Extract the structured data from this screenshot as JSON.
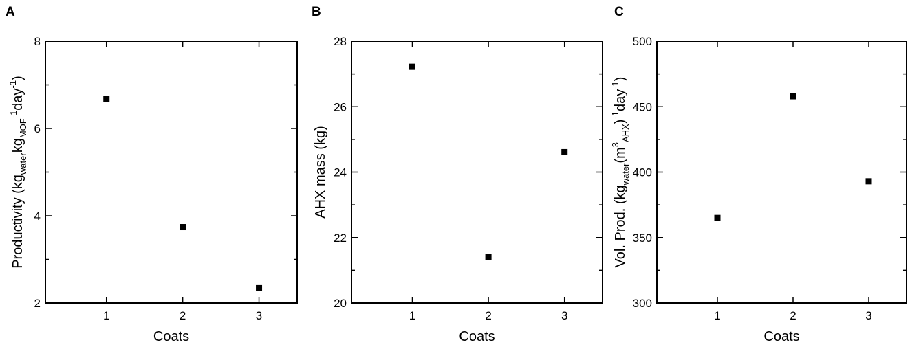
{
  "chart_data": [
    {
      "panel": "A",
      "type": "scatter",
      "xlabel": "Coats",
      "ylabel": {
        "main": "Productivity (kg",
        "sub1": "water",
        "mid1": "kg",
        "sub2": "MOF",
        "sup2": "-1",
        "end": "day",
        "sup3": "-1",
        "close": ")"
      },
      "x": [
        1,
        2,
        3
      ],
      "y": [
        6.67,
        3.74,
        2.34
      ],
      "xlim": [
        0.2,
        3.5
      ],
      "ylim": [
        2,
        8
      ],
      "xticks": [
        "1",
        "2",
        "3"
      ],
      "yticks": [
        "2",
        "4",
        "6",
        "8"
      ],
      "grid": false
    },
    {
      "panel": "B",
      "type": "scatter",
      "xlabel": "Coats",
      "ylabel": {
        "main": "AHX mass (kg)"
      },
      "x": [
        1,
        2,
        3
      ],
      "y": [
        27.22,
        21.41,
        24.61
      ],
      "xlim": [
        0.2,
        3.5
      ],
      "ylim": [
        20,
        28
      ],
      "xticks": [
        "1",
        "2",
        "3"
      ],
      "yticks": [
        "20",
        "22",
        "24",
        "26",
        "28"
      ],
      "grid": false
    },
    {
      "panel": "C",
      "type": "scatter",
      "xlabel": "Coats",
      "ylabel": {
        "main": "Vol. Prod. (kg",
        "sub1": "water",
        "mid1": "(m",
        "sup2": "3",
        "sub2": "AHX",
        "end": ")",
        "sup3": "-1",
        "end2": "day",
        "sup4": "-1",
        "close": ")"
      },
      "x": [
        1,
        2,
        3
      ],
      "y": [
        365,
        458,
        393
      ],
      "xlim": [
        0.2,
        3.5
      ],
      "ylim": [
        300,
        500
      ],
      "xticks": [
        "1",
        "2",
        "3"
      ],
      "yticks": [
        "300",
        "350",
        "400",
        "450",
        "500"
      ],
      "grid": false
    }
  ]
}
